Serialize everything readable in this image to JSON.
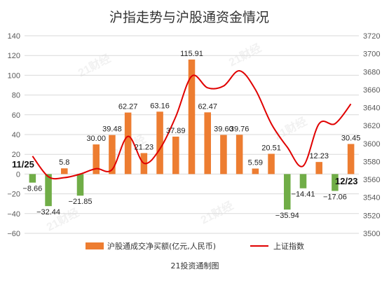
{
  "chart_data": {
    "type": "bar+line",
    "title": "沪指走势与沪股通资金情况",
    "categories": [
      "11/25",
      "",
      "",
      "",
      "",
      "",
      "",
      "",
      "",
      "",
      "",
      "",
      "",
      "",
      "",
      "",
      "",
      "",
      "",
      "",
      "12/23"
    ],
    "series": [
      {
        "name": "沪股通成交净买额(亿元,人民币)",
        "type": "bar",
        "axis": "left",
        "values": [
          -8.66,
          -32.44,
          5.8,
          -21.85,
          30.0,
          39.48,
          62.27,
          21.23,
          63.16,
          37.89,
          115.91,
          62.47,
          39.6,
          39.76,
          5.59,
          20.51,
          -35.94,
          -14.41,
          12.23,
          -17.06,
          30.45
        ],
        "labels": [
          "-8.66",
          "-32.44",
          "5.8",
          "-21.85",
          "30.00",
          "39.48",
          "62.27",
          "21.23",
          "63.16",
          "37.89",
          "115.91",
          "62.47",
          "39.60",
          "39.76",
          "5.59",
          "20.51",
          "-35.94",
          "-14.41",
          "12.23",
          "-17.06",
          "30.45"
        ],
        "color_positive": "#ED7D31",
        "color_negative": "#70AD47"
      },
      {
        "name": "上证指数",
        "type": "line",
        "axis": "right",
        "values": [
          3586,
          3563,
          3562,
          3566,
          3572,
          3571,
          3608,
          3578,
          3594,
          3630,
          3675,
          3662,
          3664,
          3681,
          3660,
          3622,
          3596,
          3575,
          3622,
          3622,
          3644
        ],
        "color": "#E00000"
      }
    ],
    "ylim": [
      -60,
      140
    ],
    "yticks": [
      "140",
      "120",
      "100",
      "80",
      "60",
      "40",
      "20",
      "0",
      "-20",
      "-40",
      "-60"
    ],
    "y2lim": [
      3500,
      3720
    ],
    "y2ticks": [
      "3720",
      "3700",
      "3680",
      "3660",
      "3640",
      "3620",
      "3600",
      "3580",
      "3560",
      "3540",
      "3520",
      "3500"
    ],
    "date_labels": {
      "start": "11/25",
      "end": "12/23"
    },
    "grid": true,
    "legend": "bottom"
  },
  "source": "21投资通制图",
  "watermark": "21财经"
}
